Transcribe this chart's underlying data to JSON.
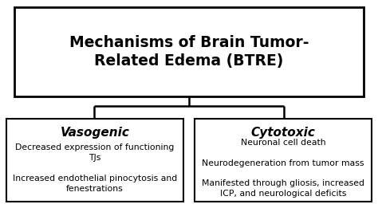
{
  "title": "Mechanisms of Brain Tumor-\nRelated Edema (BTRE)",
  "title_fontsize": 13.5,
  "left_heading": "Vasogenic",
  "left_body": "Decreased expression of functioning\nTJs\n\nIncreased endothelial pinocytosis and\nfenestrations",
  "right_heading": "Cytotoxic",
  "right_body": "Neuronal cell death\n\nNeurodegeneration from tumor mass\n\nManifested through gliosis, increased\nICP, and neurological deficits",
  "bg_color": "#ffffff",
  "box_edge_color": "#000000",
  "text_color": "#000000",
  "heading_fontsize": 11,
  "body_fontsize": 7.8
}
